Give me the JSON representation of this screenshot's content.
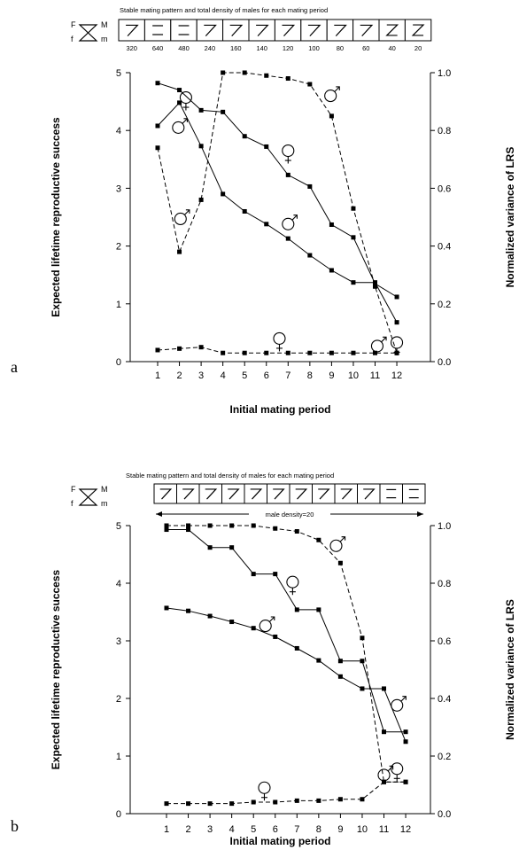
{
  "chart_data": [
    {
      "panel": "a",
      "type": "line",
      "header": {
        "title": "Stable mating pattern and total density of males for each mating period",
        "patterns": [
          "7",
          "=",
          "=",
          "7",
          "7",
          "7",
          "7",
          "7",
          "7",
          "7",
          "X",
          "X"
        ],
        "densities": [
          "320",
          "640",
          "480",
          "240",
          "160",
          "140",
          "120",
          "100",
          "80",
          "60",
          "40",
          "20"
        ],
        "key": {
          "F": "F",
          "f": "f",
          "M": "M",
          "m": "m"
        }
      },
      "xlabel": "Initial mating period",
      "ylabel": "Expected lifetime reproductive success",
      "y2label": "Normalized variance of LRS",
      "x": [
        1,
        2,
        3,
        4,
        5,
        6,
        7,
        8,
        9,
        10,
        11,
        12
      ],
      "x_ticks": [
        "1",
        "2",
        "3",
        "4",
        "5",
        "6",
        "7",
        "8",
        "9",
        "10",
        "11",
        "12"
      ],
      "ylim": [
        0,
        5
      ],
      "y_ticks": [
        "0",
        "1",
        "2",
        "3",
        "4",
        "5"
      ],
      "y2lim": [
        0,
        1
      ],
      "y2_ticks": [
        "0.0",
        "0.2",
        "0.4",
        "0.6",
        "0.8",
        "1.0"
      ],
      "grid": false,
      "series": [
        {
          "symbol": "female",
          "style": "solid",
          "axis": "left",
          "values": [
            4.82,
            4.7,
            4.35,
            4.32,
            3.9,
            3.72,
            3.23,
            3.03,
            2.37,
            2.15,
            1.35,
            1.12
          ]
        },
        {
          "symbol": "male",
          "style": "solid",
          "axis": "left",
          "values": [
            4.08,
            4.48,
            3.73,
            2.9,
            2.6,
            2.38,
            2.13,
            1.84,
            1.58,
            1.37,
            1.37,
            0.68
          ]
        },
        {
          "symbol": "male",
          "style": "dashed",
          "axis": "right",
          "values": [
            0.74,
            0.38,
            0.56,
            1.0,
            1.0,
            0.99,
            0.98,
            0.96,
            0.85,
            0.53,
            0.26,
            0.03
          ]
        },
        {
          "symbol": "female",
          "style": "dashed",
          "axis": "right",
          "values": [
            0.04,
            0.045,
            0.05,
            0.03,
            0.03,
            0.03,
            0.03,
            0.03,
            0.03,
            0.03,
            0.03,
            0.03
          ]
        }
      ],
      "symbol_annotations": [
        {
          "symbol": "female",
          "x": 2.3,
          "y": 4.57
        },
        {
          "symbol": "male",
          "x": 1.95,
          "y": 4.05
        },
        {
          "symbol": "male",
          "x": 2.05,
          "y": 2.47
        },
        {
          "symbol": "female",
          "x": 7.0,
          "y": 3.65
        },
        {
          "symbol": "male",
          "x": 7.0,
          "y": 2.38
        },
        {
          "symbol": "male",
          "x": 8.95,
          "y": 4.6
        },
        {
          "symbol": "female",
          "x": 6.6,
          "y": 0.4
        },
        {
          "symbol": "male",
          "x": 11.1,
          "y": 0.27
        },
        {
          "symbol": "female",
          "x": 12.0,
          "y": 0.33
        }
      ]
    },
    {
      "panel": "b",
      "type": "line",
      "header": {
        "title": "Stable mating pattern and total density of males for each mating period",
        "patterns": [
          "7",
          "7",
          "7",
          "7",
          "7",
          "7",
          "7",
          "7",
          "7",
          "7",
          "=",
          "="
        ],
        "density_note": "male density=20",
        "key": {
          "F": "F",
          "f": "f",
          "M": "M",
          "m": "m"
        }
      },
      "xlabel": "Initial mating period",
      "ylabel": "Expected lifetime reproductive success",
      "y2label": "Normalized variance of LRS",
      "x": [
        1,
        2,
        3,
        4,
        5,
        6,
        7,
        8,
        9,
        10,
        11,
        12
      ],
      "x_ticks": [
        "1",
        "2",
        "3",
        "4",
        "5",
        "6",
        "7",
        "8",
        "9",
        "10",
        "11",
        "12"
      ],
      "ylim": [
        0,
        5
      ],
      "y_ticks": [
        "0",
        "1",
        "2",
        "3",
        "4",
        "5"
      ],
      "y2lim": [
        0,
        1
      ],
      "y2_ticks": [
        "0.0",
        "0.2",
        "0.4",
        "0.6",
        "0.8",
        "1.0"
      ],
      "grid": false,
      "series": [
        {
          "symbol": "female",
          "style": "solid",
          "axis": "left",
          "values": [
            4.93,
            4.93,
            4.62,
            4.62,
            4.16,
            4.16,
            3.54,
            3.54,
            2.65,
            2.65,
            1.42,
            1.42
          ]
        },
        {
          "symbol": "male",
          "style": "solid",
          "axis": "left",
          "values": [
            3.57,
            3.52,
            3.43,
            3.33,
            3.22,
            3.07,
            2.87,
            2.66,
            2.38,
            2.17,
            2.17,
            1.25
          ]
        },
        {
          "symbol": "male",
          "style": "dashed",
          "axis": "right",
          "values": [
            1.0,
            1.0,
            1.0,
            1.0,
            1.0,
            0.99,
            0.98,
            0.95,
            0.87,
            0.61,
            0.11,
            0.11
          ]
        },
        {
          "symbol": "female",
          "style": "dashed",
          "axis": "right",
          "values": [
            0.035,
            0.035,
            0.035,
            0.035,
            0.04,
            0.04,
            0.045,
            0.045,
            0.05,
            0.05,
            0.11,
            0.11
          ]
        }
      ],
      "symbol_annotations": [
        {
          "symbol": "female",
          "x": 6.8,
          "y": 4.02
        },
        {
          "symbol": "male",
          "x": 5.55,
          "y": 3.26
        },
        {
          "symbol": "male",
          "x": 8.8,
          "y": 4.65
        },
        {
          "symbol": "female",
          "x": 5.5,
          "y": 0.45
        },
        {
          "symbol": "male",
          "x": 11.6,
          "y": 1.88
        },
        {
          "symbol": "male",
          "x": 11.0,
          "y": 0.67
        },
        {
          "symbol": "female",
          "x": 11.6,
          "y": 0.78
        }
      ]
    }
  ]
}
